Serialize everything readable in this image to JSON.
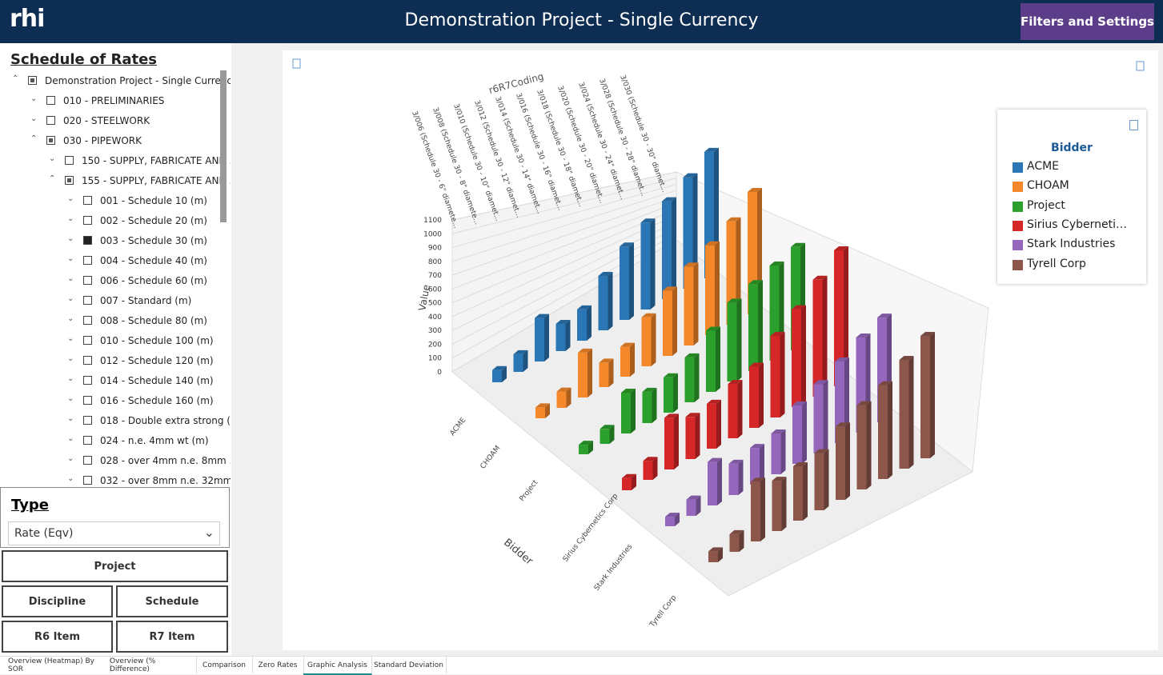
{
  "header": {
    "logo": "rhi",
    "title": "Demonstration Project - Single Currency",
    "button": "Filters and Settings"
  },
  "tree": {
    "title": "Schedule of Rates",
    "items": [
      "Demonstration Project - Single Currency",
      "010 - PRELIMINARIES",
      "020 - STEELWORK",
      "030 - PIPEWORK",
      "150 - SUPPLY, FABRICATE AND ...",
      "155 - SUPPLY, FABRICATE AND ...",
      "001 - Schedule 10 (m)",
      "002 - Schedule 20 (m)",
      "003 - Schedule 30 (m)",
      "004 - Schedule 40 (m)",
      "006 - Schedule 60 (m)",
      "007 - Standard (m)",
      "008 - Schedule 80 (m)",
      "010 - Schedule 100 (m)",
      "012 - Schedule 120 (m)",
      "014 - Schedule 140 (m)",
      "016 - Schedule 160 (m)",
      "018 - Double extra strong (...",
      "024 - n.e. 4mm wt (m)",
      "028 - over 4mm n.e. 8mm ...",
      "032 - over 8mm n.e. 32mm ..."
    ]
  },
  "type_filter": {
    "title": "Type",
    "value": "Rate (Eqv)"
  },
  "buttons": [
    "Project",
    "Discipline",
    "Schedule",
    "R6 Item",
    "R7 Item"
  ],
  "tabs": [
    "Overview (Heatmap) By SOR",
    "Overview (% Difference)",
    "Comparison",
    "Zero Rates",
    "Graphic Analysis",
    "Standard Deviation"
  ],
  "chart_data": {
    "type": "bar3d",
    "x_label": "r6R7Coding",
    "y_label": "Value",
    "z_label": "Bidder",
    "legend_title": "Bidder",
    "categories": [
      "3/006 (Schedule 30 - 6\" diamete...",
      "3/008 (Schedule 30 - 8\" diamete...",
      "3/010 (Schedule 30 - 10\" diamet...",
      "3/012 (Schedule 30 - 12\" diamet...",
      "3/014 (Schedule 30 - 14\" diamet...",
      "3/016 (Schedule 30 - 16\" diamet...",
      "3/018 (Schedule 30 - 18\" diamet...",
      "3/020 (Schedule 30 - 20\" diamet...",
      "3/024 (Schedule 30 - 24\" diamet...",
      "3/028 (Schedule 30 - 28\" diamet...",
      "3/030 (Schedule 30 - 30\" diamet..."
    ],
    "series": [
      {
        "name": "ACME",
        "color": "#2b77b5",
        "values": [
          90,
          130,
          320,
          200,
          230,
          400,
          540,
          640,
          720,
          820,
          930
        ]
      },
      {
        "name": "CHOAM",
        "color": "#f5882a",
        "values": [
          80,
          120,
          330,
          180,
          220,
          360,
          480,
          580,
          660,
          760,
          900
        ]
      },
      {
        "name": "Project",
        "color": "#2ca02c",
        "values": [
          70,
          110,
          300,
          230,
          260,
          330,
          450,
          580,
          640,
          700,
          760
        ]
      },
      {
        "name": "Sirius Cybernetics Corp",
        "color": "#d62728",
        "values": [
          90,
          140,
          380,
          310,
          330,
          400,
          450,
          600,
          720,
          860,
          1000
        ]
      },
      {
        "name": "Stark Industries",
        "color": "#9467bd",
        "values": [
          70,
          120,
          320,
          230,
          270,
          300,
          430,
          510,
          600,
          700,
          770
        ]
      },
      {
        "name": "Tyrell Corp",
        "color": "#8c564b",
        "values": [
          80,
          130,
          440,
          370,
          400,
          420,
          540,
          620,
          690,
          800,
          900
        ]
      }
    ],
    "ylim": [
      0,
      1100
    ],
    "yticks": [
      0,
      100,
      200,
      300,
      400,
      500,
      600,
      700,
      800,
      900,
      1000,
      1100
    ],
    "grid": true
  }
}
